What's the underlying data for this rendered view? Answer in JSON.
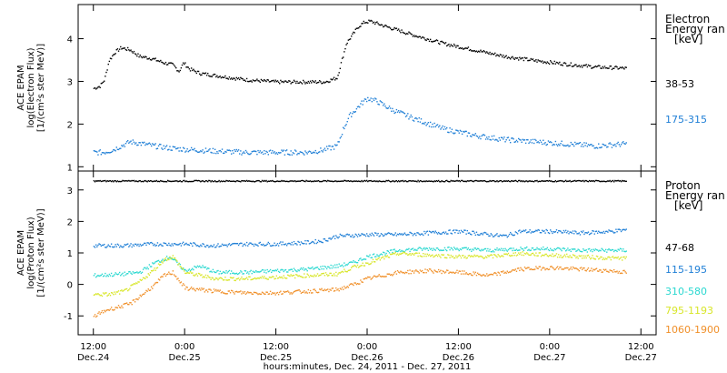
{
  "chart_data": [
    {
      "type": "scatter",
      "panel": "electron",
      "ylabel": [
        "ACE EPAM",
        "log(Electron Flux)",
        "[1/(cm²s ster MeV)]"
      ],
      "ylim": [
        0.9,
        4.8
      ],
      "yticks": [
        1,
        2,
        3,
        4
      ],
      "legend_title": [
        "Electron",
        "Energy ran",
        "[keV]"
      ],
      "legend_placement": "right",
      "series": [
        {
          "name": "38-53",
          "color": "#000000",
          "x": [
            0.0,
            0.2,
            0.35,
            0.5,
            0.7,
            0.9,
            1.2,
            1.5,
            1.9,
            2.3,
            2.6,
            2.8,
            2.95,
            3.15,
            3.5,
            4.0,
            5.0,
            6.0,
            7.0,
            7.6,
            8.0,
            8.15,
            8.3,
            8.5,
            8.7,
            8.9,
            9.1,
            9.6,
            10.5,
            11.5,
            12.5,
            13.5,
            14.5,
            15.5,
            16.5,
            17.5
          ],
          "y": [
            2.85,
            2.9,
            3.05,
            3.5,
            3.7,
            3.8,
            3.75,
            3.6,
            3.55,
            3.45,
            3.4,
            3.25,
            3.45,
            3.3,
            3.2,
            3.15,
            3.05,
            3.0,
            3.0,
            3.0,
            3.1,
            3.5,
            3.9,
            4.1,
            4.3,
            4.4,
            4.42,
            4.3,
            4.1,
            3.9,
            3.75,
            3.6,
            3.5,
            3.42,
            3.35,
            3.32
          ]
        },
        {
          "name": "175-315",
          "color": "#1f7fd6",
          "x": [
            0.0,
            0.3,
            0.6,
            0.9,
            1.2,
            1.6,
            2.0,
            2.5,
            3.0,
            3.5,
            4.0,
            5.0,
            6.0,
            7.0,
            7.5,
            8.0,
            8.2,
            8.4,
            8.6,
            8.8,
            9.0,
            9.3,
            9.8,
            10.5,
            11.5,
            12.5,
            13.5,
            14.5,
            15.5,
            16.5,
            17.5
          ],
          "y": [
            1.35,
            1.35,
            1.4,
            1.5,
            1.6,
            1.55,
            1.5,
            1.45,
            1.42,
            1.4,
            1.38,
            1.35,
            1.35,
            1.35,
            1.4,
            1.5,
            1.9,
            2.2,
            2.35,
            2.5,
            2.62,
            2.55,
            2.35,
            2.15,
            1.9,
            1.75,
            1.65,
            1.6,
            1.55,
            1.5,
            1.55
          ]
        }
      ]
    },
    {
      "type": "scatter",
      "panel": "proton",
      "ylabel": [
        "ACE EPAM",
        "log(Proton Flux)",
        "[1/(cm²s ster MeV)]"
      ],
      "ylim": [
        -1.6,
        3.6
      ],
      "yticks": [
        -1,
        0,
        1,
        2,
        3
      ],
      "legend_title": [
        "Proton",
        "Energy ran",
        "[keV]"
      ],
      "legend_placement": "right",
      "xlabel": "hours:minutes, Dec. 24, 2011 - Dec. 27, 2011",
      "xlim": [
        -0.5,
        18.5
      ],
      "xticks": [
        {
          "x": 0,
          "time": "12:00",
          "date": "Dec.24"
        },
        {
          "x": 3,
          "time": "0:00",
          "date": "Dec.25"
        },
        {
          "x": 6,
          "time": "12:00",
          "date": "Dec.25"
        },
        {
          "x": 9,
          "time": "0:00",
          "date": "Dec.26"
        },
        {
          "x": 12,
          "time": "12:00",
          "date": "Dec.26"
        },
        {
          "x": 15,
          "time": "0:00",
          "date": "Dec.27"
        },
        {
          "x": 18,
          "time": "12:00",
          "date": "Dec.27"
        }
      ],
      "series": [
        {
          "name": "47-68",
          "color": "#000000",
          "x": [
            0.0,
            17.5
          ],
          "y": [
            3.3,
            3.3
          ]
        },
        {
          "name": "115-195",
          "color": "#1f7fd6",
          "x": [
            0.0,
            1.0,
            2.0,
            3.0,
            4.0,
            5.0,
            6.0,
            7.0,
            7.5,
            8.0,
            9.0,
            10.0,
            11.0,
            12.0,
            13.0,
            13.5,
            14.0,
            15.0,
            16.0,
            17.0,
            17.5
          ],
          "y": [
            1.25,
            1.25,
            1.3,
            1.3,
            1.25,
            1.3,
            1.3,
            1.35,
            1.4,
            1.55,
            1.6,
            1.6,
            1.65,
            1.7,
            1.6,
            1.55,
            1.7,
            1.7,
            1.65,
            1.7,
            1.75
          ]
        },
        {
          "name": "310-580",
          "color": "#2ad8d0",
          "x": [
            0.0,
            1.0,
            1.5,
            2.0,
            2.5,
            3.0,
            3.5,
            4.0,
            5.0,
            6.0,
            7.0,
            8.0,
            8.5,
            9.0,
            9.5,
            10.0,
            11.0,
            12.0,
            13.0,
            14.0,
            15.0,
            16.0,
            17.0,
            17.5
          ],
          "y": [
            0.3,
            0.35,
            0.4,
            0.7,
            0.9,
            0.45,
            0.6,
            0.4,
            0.4,
            0.45,
            0.5,
            0.6,
            0.7,
            0.9,
            1.0,
            1.1,
            1.15,
            1.15,
            1.1,
            1.15,
            1.15,
            1.1,
            1.1,
            1.1
          ]
        },
        {
          "name": "795-1193",
          "color": "#d8e62a",
          "x": [
            0.0,
            0.5,
            1.0,
            1.5,
            2.0,
            2.3,
            2.6,
            3.0,
            3.5,
            4.0,
            5.0,
            6.0,
            7.0,
            8.0,
            8.5,
            9.0,
            9.5,
            10.0,
            11.0,
            12.0,
            13.0,
            14.0,
            15.0,
            16.0,
            17.0,
            17.5
          ],
          "y": [
            -0.3,
            -0.3,
            -0.2,
            0.1,
            0.5,
            0.8,
            0.9,
            0.4,
            0.3,
            0.2,
            0.2,
            0.25,
            0.3,
            0.35,
            0.55,
            0.7,
            0.85,
            1.0,
            0.95,
            0.9,
            0.9,
            1.0,
            0.95,
            0.9,
            0.85,
            0.85
          ]
        },
        {
          "name": "1060-1900",
          "color": "#f0902a",
          "x": [
            0.0,
            0.4,
            0.8,
            1.2,
            1.6,
            2.0,
            2.3,
            2.6,
            3.0,
            3.5,
            4.0,
            5.0,
            6.0,
            7.0,
            8.0,
            8.5,
            9.0,
            9.5,
            10.0,
            11.0,
            12.0,
            13.0,
            14.0,
            15.0,
            16.0,
            17.0,
            17.5
          ],
          "y": [
            -1.0,
            -0.8,
            -0.7,
            -0.6,
            -0.3,
            0.0,
            0.3,
            0.4,
            -0.1,
            -0.15,
            -0.2,
            -0.25,
            -0.25,
            -0.2,
            -0.15,
            0.0,
            0.2,
            0.3,
            0.4,
            0.45,
            0.4,
            0.3,
            0.5,
            0.55,
            0.5,
            0.45,
            0.4
          ]
        }
      ]
    }
  ]
}
